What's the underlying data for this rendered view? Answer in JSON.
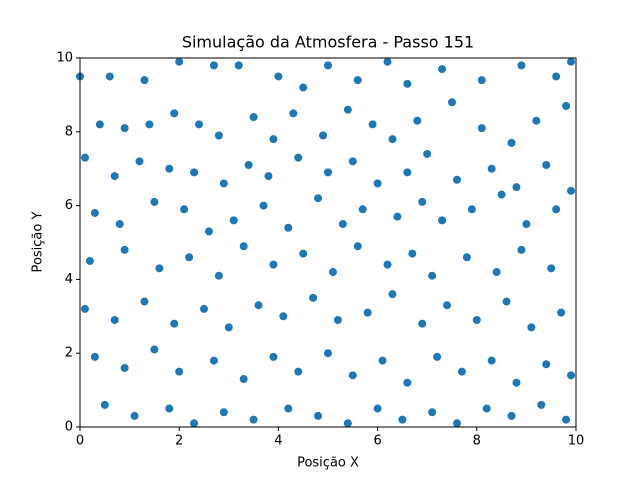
{
  "chart_data": {
    "type": "scatter",
    "title": "Simulação da Atmosfera - Passo 151",
    "xlabel": "Posição X",
    "ylabel": "Posição Y",
    "color": "#1f77b4",
    "xlim": [
      0,
      10
    ],
    "ylim": [
      0,
      10
    ],
    "xticks": [
      0,
      2,
      4,
      6,
      8,
      10
    ],
    "yticks": [
      0,
      2,
      4,
      6,
      8,
      10
    ],
    "grid": false,
    "x": [
      0,
      0.6,
      1.3,
      2.0,
      2.7,
      3.2,
      4.0,
      4.5,
      5.0,
      5.6,
      6.2,
      6.6,
      7.3,
      8.1,
      8.9,
      9.6,
      9.9,
      0.4,
      0.9,
      1.4,
      1.9,
      2.4,
      2.8,
      3.5,
      3.9,
      4.3,
      4.9,
      5.4,
      5.9,
      6.3,
      6.8,
      7.5,
      8.1,
      8.7,
      9.2,
      9.8,
      0.1,
      0.7,
      1.2,
      1.8,
      2.3,
      2.9,
      3.4,
      3.8,
      4.4,
      5.0,
      5.5,
      6.0,
      6.6,
      7.0,
      7.6,
      8.3,
      8.8,
      9.4,
      9.9,
      0.3,
      0.8,
      1.5,
      2.1,
      2.6,
      3.1,
      3.7,
      4.2,
      4.8,
      5.3,
      5.7,
      6.4,
      6.9,
      7.3,
      7.9,
      8.5,
      9.0,
      9.6,
      0.2,
      0.9,
      1.6,
      2.2,
      2.8,
      3.3,
      3.9,
      4.5,
      5.1,
      5.6,
      6.2,
      6.7,
      7.1,
      7.8,
      8.4,
      8.9,
      9.5,
      0.1,
      0.7,
      1.3,
      1.9,
      2.5,
      3.0,
      3.6,
      4.1,
      4.7,
      5.2,
      5.8,
      6.3,
      6.9,
      7.4,
      8.0,
      8.6,
      9.1,
      9.7,
      0.3,
      0.9,
      1.5,
      2.0,
      2.7,
      3.3,
      3.9,
      4.4,
      5.0,
      5.5,
      6.1,
      6.6,
      7.2,
      7.7,
      8.3,
      8.8,
      9.4,
      9.9,
      0.5,
      1.1,
      1.8,
      2.3,
      2.9,
      3.5,
      4.2,
      4.8,
      5.4,
      6.0,
      6.5,
      7.1,
      7.6,
      8.2,
      8.7,
      9.3,
      9.8
    ],
    "y": [
      9.5,
      9.5,
      9.4,
      9.9,
      9.8,
      9.8,
      9.5,
      9.2,
      9.8,
      9.4,
      9.9,
      9.3,
      9.7,
      9.4,
      9.8,
      9.5,
      9.9,
      8.2,
      8.1,
      8.2,
      8.5,
      8.2,
      7.9,
      8.4,
      7.8,
      8.5,
      7.9,
      8.6,
      8.2,
      7.8,
      8.3,
      8.8,
      8.1,
      7.7,
      8.3,
      8.7,
      7.3,
      6.8,
      7.2,
      7.0,
      6.9,
      6.6,
      7.1,
      6.8,
      7.3,
      6.9,
      7.2,
      6.6,
      6.9,
      7.4,
      6.7,
      7.0,
      6.5,
      7.1,
      6.4,
      5.8,
      5.5,
      6.1,
      5.9,
      5.3,
      5.6,
      6.0,
      5.4,
      6.2,
      5.5,
      5.9,
      5.7,
      6.1,
      5.6,
      5.9,
      6.3,
      5.5,
      5.9,
      4.5,
      4.8,
      4.3,
      4.6,
      4.1,
      4.9,
      4.4,
      4.7,
      4.2,
      4.9,
      4.4,
      4.7,
      4.1,
      4.6,
      4.2,
      4.8,
      4.3,
      3.2,
      2.9,
      3.4,
      2.8,
      3.2,
      2.7,
      3.3,
      3.0,
      3.5,
      2.9,
      3.1,
      3.6,
      2.8,
      3.3,
      2.9,
      3.4,
      2.7,
      3.1,
      1.9,
      1.6,
      2.1,
      1.5,
      1.8,
      1.3,
      1.9,
      1.5,
      2.0,
      1.4,
      1.8,
      1.2,
      1.9,
      1.5,
      1.8,
      1.2,
      1.7,
      1.4,
      0.6,
      0.3,
      0.5,
      0.1,
      0.4,
      0.2,
      0.5,
      0.3,
      0.1,
      0.5,
      0.2,
      0.4,
      0.1,
      0.5,
      0.3,
      0.6,
      0.2
    ]
  }
}
